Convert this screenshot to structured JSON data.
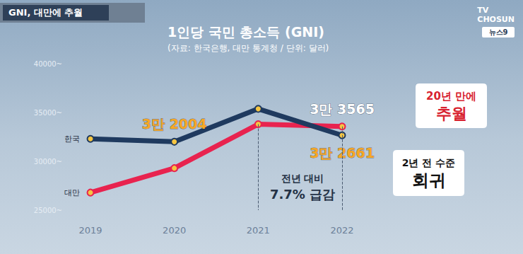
{
  "header": "GNI, 대만에 추월",
  "logo": [
    "TV CHOSUN",
    "뉴스9"
  ],
  "chart_data": {
    "type": "line",
    "title": "1인당 국민 총소득 (GNI)",
    "subtitle": "(자료: 한국은행, 대만 통계청 / 단위: 달러)",
    "categories": [
      "2019",
      "2020",
      "2021",
      "2022"
    ],
    "series": [
      {
        "name": "한국",
        "color": "#1f3a5f",
        "values": [
          32300,
          32004,
          35373,
          32661
        ],
        "value_labels": [
          null,
          "3만 2004",
          null,
          "3만 2661"
        ]
      },
      {
        "name": "대만",
        "color": "#e8234f",
        "values": [
          26800,
          29300,
          33800,
          33565
        ],
        "value_labels": [
          null,
          null,
          null,
          "3만 3565"
        ]
      }
    ],
    "ylim": [
      25000,
      40000
    ],
    "yticks": [
      {
        "value": 25000,
        "label": "25000~"
      },
      {
        "value": 30000,
        "label": "30000~"
      },
      {
        "value": 35000,
        "label": "35000~"
      },
      {
        "value": 40000,
        "label": "40000~"
      }
    ],
    "grid": false,
    "marker": "circle",
    "annotations": [
      "전년 대비\n7.7% 급감",
      "20년 만에\n추월",
      "2년 전 수준\n회귀"
    ]
  }
}
